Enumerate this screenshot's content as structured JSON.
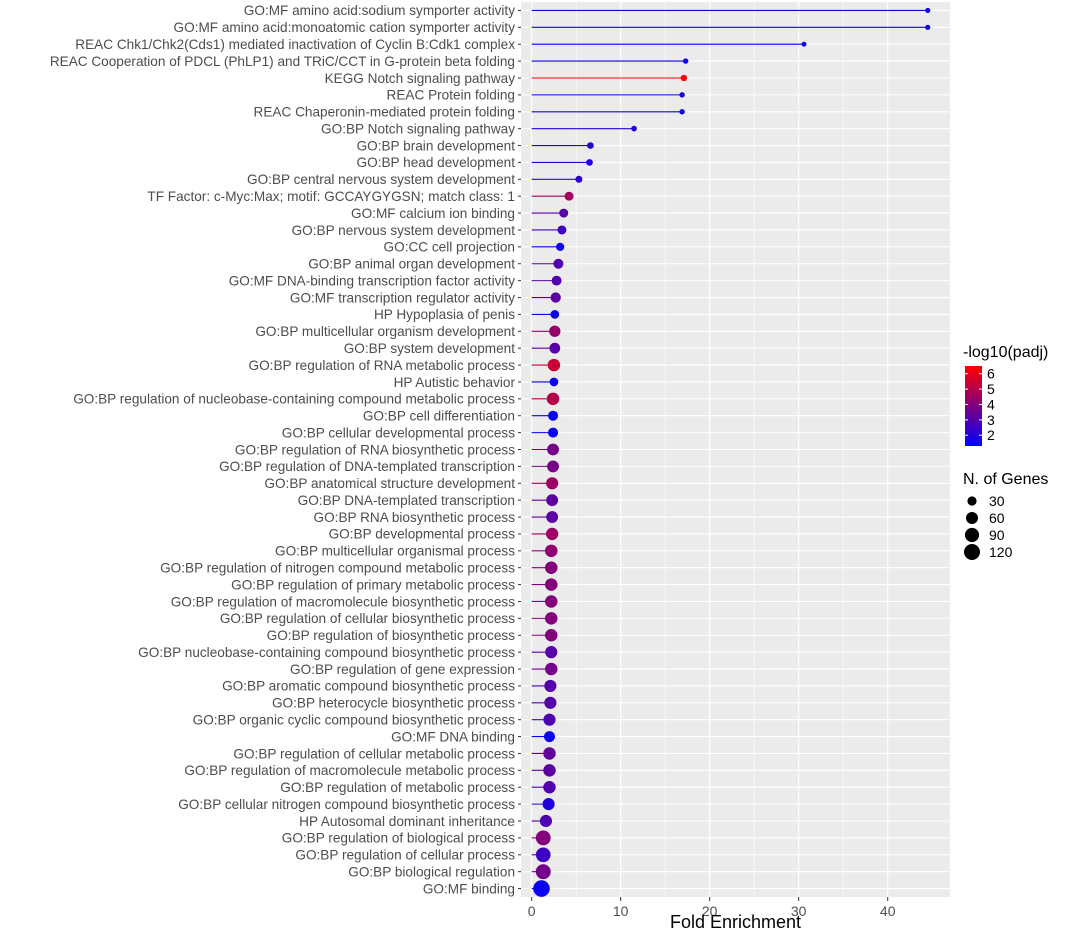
{
  "chart_data": {
    "type": "lollipop",
    "title": "",
    "xlabel": "Fold Enrichment",
    "ylabel": "",
    "xlim": [
      -1.2,
      47
    ],
    "x_ticks": [
      0,
      10,
      20,
      30,
      40
    ],
    "x_tick_labels": [
      "0",
      "10",
      "20",
      "30",
      "40"
    ],
    "color_legend": {
      "title": "-log10(padj)",
      "range": [
        1.3,
        6.5
      ],
      "ticks": [
        2,
        3,
        4,
        5,
        6
      ],
      "tick_labels": [
        "2",
        "3",
        "4",
        "5",
        "6"
      ],
      "low_color": "#0000ff",
      "high_color": "#ff0000"
    },
    "size_legend": {
      "title": "N. of Genes",
      "values": [
        30,
        60,
        90,
        120
      ],
      "labels": [
        "30",
        "60",
        "90",
        "120"
      ]
    },
    "legend_position": "right",
    "points": [
      {
        "term": "GO:MF amino acid:sodium symporter activity",
        "fold_enrichment": 44.5,
        "padj_log10": 1.6,
        "genes": 5
      },
      {
        "term": "GO:MF amino acid:monoatomic cation symporter activity",
        "fold_enrichment": 44.5,
        "padj_log10": 1.6,
        "genes": 5
      },
      {
        "term": "REAC Chk1/Chk2(Cds1) mediated inactivation of Cyclin B:Cdk1 complex",
        "fold_enrichment": 30.6,
        "padj_log10": 1.5,
        "genes": 4
      },
      {
        "term": "REAC Cooperation of PDCL (PhLP1) and TRiC/CCT in G-protein beta folding",
        "fold_enrichment": 17.3,
        "padj_log10": 1.7,
        "genes": 6
      },
      {
        "term": "KEGG Notch signaling pathway",
        "fold_enrichment": 17.1,
        "padj_log10": 6.5,
        "genes": 10
      },
      {
        "term": "REAC Protein folding",
        "fold_enrichment": 16.9,
        "padj_log10": 1.7,
        "genes": 6
      },
      {
        "term": "REAC Chaperonin-mediated protein folding",
        "fold_enrichment": 16.9,
        "padj_log10": 1.7,
        "genes": 6
      },
      {
        "term": "GO:BP Notch signaling pathway",
        "fold_enrichment": 11.5,
        "padj_log10": 2.0,
        "genes": 7
      },
      {
        "term": "GO:BP brain development",
        "fold_enrichment": 6.6,
        "padj_log10": 2.0,
        "genes": 12
      },
      {
        "term": "GO:BP head development",
        "fold_enrichment": 6.5,
        "padj_log10": 2.0,
        "genes": 12
      },
      {
        "term": "GO:BP central nervous system development",
        "fold_enrichment": 5.3,
        "padj_log10": 2.2,
        "genes": 14
      },
      {
        "term": "TF Factor: c-Myc:Max; motif: GCCAYGYGSN; match class: 1",
        "fold_enrichment": 4.2,
        "padj_log10": 4.6,
        "genes": 28
      },
      {
        "term": "GO:MF calcium ion binding",
        "fold_enrichment": 3.6,
        "padj_log10": 3.1,
        "genes": 28
      },
      {
        "term": "GO:BP nervous system development",
        "fold_enrichment": 3.4,
        "padj_log10": 2.6,
        "genes": 28
      },
      {
        "term": "GO:CC cell projection",
        "fold_enrichment": 3.2,
        "padj_log10": 1.6,
        "genes": 22
      },
      {
        "term": "GO:BP animal organ development",
        "fold_enrichment": 3.0,
        "padj_log10": 3.0,
        "genes": 38
      },
      {
        "term": "GO:MF DNA-binding transcription factor activity",
        "fold_enrichment": 2.8,
        "padj_log10": 3.0,
        "genes": 36
      },
      {
        "term": "GO:MF transcription regulator activity",
        "fold_enrichment": 2.7,
        "padj_log10": 3.2,
        "genes": 40
      },
      {
        "term": "HP Hypoplasia of penis",
        "fold_enrichment": 2.6,
        "padj_log10": 1.5,
        "genes": 26
      },
      {
        "term": "GO:BP multicellular organism development",
        "fold_enrichment": 2.6,
        "padj_log10": 4.3,
        "genes": 52
      },
      {
        "term": "GO:BP system development",
        "fold_enrichment": 2.6,
        "padj_log10": 3.1,
        "genes": 46
      },
      {
        "term": "GO:BP regulation of RNA metabolic process",
        "fold_enrichment": 2.5,
        "padj_log10": 5.4,
        "genes": 66
      },
      {
        "term": "HP Autistic behavior",
        "fold_enrichment": 2.5,
        "padj_log10": 1.5,
        "genes": 26
      },
      {
        "term": "GO:BP regulation of nucleobase-containing compound metabolic process",
        "fold_enrichment": 2.4,
        "padj_log10": 5.0,
        "genes": 66
      },
      {
        "term": "GO:BP cell differentiation",
        "fold_enrichment": 2.4,
        "padj_log10": 1.5,
        "genes": 38
      },
      {
        "term": "GO:BP cellular developmental process",
        "fold_enrichment": 2.4,
        "padj_log10": 1.5,
        "genes": 38
      },
      {
        "term": "GO:BP regulation of RNA biosynthetic process",
        "fold_enrichment": 2.4,
        "padj_log10": 3.7,
        "genes": 58
      },
      {
        "term": "GO:BP regulation of DNA-templated transcription",
        "fold_enrichment": 2.4,
        "padj_log10": 3.7,
        "genes": 58
      },
      {
        "term": "GO:BP anatomical structure development",
        "fold_enrichment": 2.3,
        "padj_log10": 4.5,
        "genes": 62
      },
      {
        "term": "GO:BP DNA-templated transcription",
        "fold_enrichment": 2.3,
        "padj_log10": 3.2,
        "genes": 58
      },
      {
        "term": "GO:BP RNA biosynthetic process",
        "fold_enrichment": 2.3,
        "padj_log10": 3.2,
        "genes": 58
      },
      {
        "term": "GO:BP developmental process",
        "fold_enrichment": 2.3,
        "padj_log10": 4.5,
        "genes": 64
      },
      {
        "term": "GO:BP multicellular organismal process",
        "fold_enrichment": 2.2,
        "padj_log10": 4.2,
        "genes": 66
      },
      {
        "term": "GO:BP regulation of nitrogen compound metabolic process",
        "fold_enrichment": 2.2,
        "padj_log10": 4.0,
        "genes": 66
      },
      {
        "term": "GO:BP regulation of primary metabolic process",
        "fold_enrichment": 2.2,
        "padj_log10": 4.0,
        "genes": 66
      },
      {
        "term": "GO:BP regulation of macromolecule biosynthetic process",
        "fold_enrichment": 2.2,
        "padj_log10": 4.0,
        "genes": 66
      },
      {
        "term": "GO:BP regulation of cellular biosynthetic process",
        "fold_enrichment": 2.2,
        "padj_log10": 4.0,
        "genes": 66
      },
      {
        "term": "GO:BP regulation of biosynthetic process",
        "fold_enrichment": 2.2,
        "padj_log10": 4.0,
        "genes": 66
      },
      {
        "term": "GO:BP nucleobase-containing compound biosynthetic process",
        "fold_enrichment": 2.2,
        "padj_log10": 3.1,
        "genes": 62
      },
      {
        "term": "GO:BP regulation of gene expression",
        "fold_enrichment": 2.2,
        "padj_log10": 3.7,
        "genes": 66
      },
      {
        "term": "GO:BP aromatic compound biosynthetic process",
        "fold_enrichment": 2.1,
        "padj_log10": 3.0,
        "genes": 62
      },
      {
        "term": "GO:BP heterocycle biosynthetic process",
        "fold_enrichment": 2.1,
        "padj_log10": 3.0,
        "genes": 62
      },
      {
        "term": "GO:BP organic cyclic compound biosynthetic process",
        "fold_enrichment": 2.0,
        "padj_log10": 2.9,
        "genes": 62
      },
      {
        "term": "GO:MF DNA binding",
        "fold_enrichment": 2.0,
        "padj_log10": 1.6,
        "genes": 48
      },
      {
        "term": "GO:BP regulation of cellular metabolic process",
        "fold_enrichment": 2.0,
        "padj_log10": 3.3,
        "genes": 66
      },
      {
        "term": "GO:BP regulation of macromolecule metabolic process",
        "fold_enrichment": 2.0,
        "padj_log10": 3.2,
        "genes": 66
      },
      {
        "term": "GO:BP regulation of metabolic process",
        "fold_enrichment": 2.0,
        "padj_log10": 3.0,
        "genes": 66
      },
      {
        "term": "GO:BP cellular nitrogen compound biosynthetic process",
        "fold_enrichment": 1.9,
        "padj_log10": 2.0,
        "genes": 62
      },
      {
        "term": "HP Autosomal dominant inheritance",
        "fold_enrichment": 1.6,
        "padj_log10": 2.9,
        "genes": 62
      },
      {
        "term": "GO:BP regulation of biological process",
        "fold_enrichment": 1.3,
        "padj_log10": 4.0,
        "genes": 100
      },
      {
        "term": "GO:BP regulation of cellular process",
        "fold_enrichment": 1.3,
        "padj_log10": 2.5,
        "genes": 98
      },
      {
        "term": "GO:BP biological regulation",
        "fold_enrichment": 1.3,
        "padj_log10": 3.7,
        "genes": 102
      },
      {
        "term": "GO:MF binding",
        "fold_enrichment": 1.1,
        "padj_log10": 1.5,
        "genes": 130
      }
    ]
  }
}
